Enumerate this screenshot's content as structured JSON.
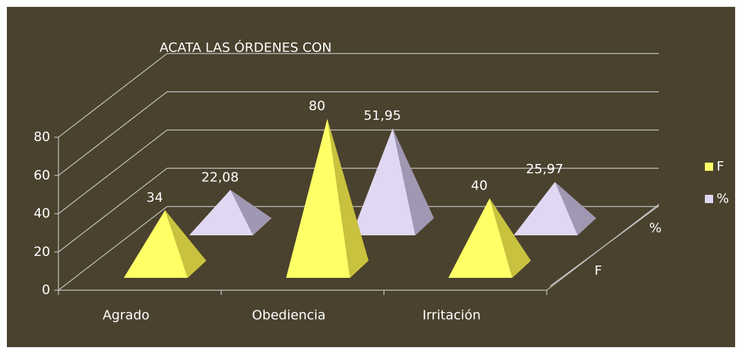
{
  "chart_data": {
    "type": "pyramid3d",
    "title": "ACATA LAS ÓRDENES CON",
    "categories": [
      "Agrado",
      "Obediencia",
      "Irritación"
    ],
    "series": [
      {
        "name": "F",
        "color": "#ffff66",
        "values": [
          34,
          80,
          40
        ]
      },
      {
        "name": "%",
        "color": "#e0d8f2",
        "values": [
          22.08,
          51.95,
          25.97
        ],
        "value_labels": [
          "22,08",
          "51,95",
          "25,97"
        ]
      }
    ],
    "ylim": [
      0,
      80
    ],
    "yticks": [
      0,
      20,
      40,
      60,
      80
    ],
    "grid": true,
    "legend": "right"
  }
}
